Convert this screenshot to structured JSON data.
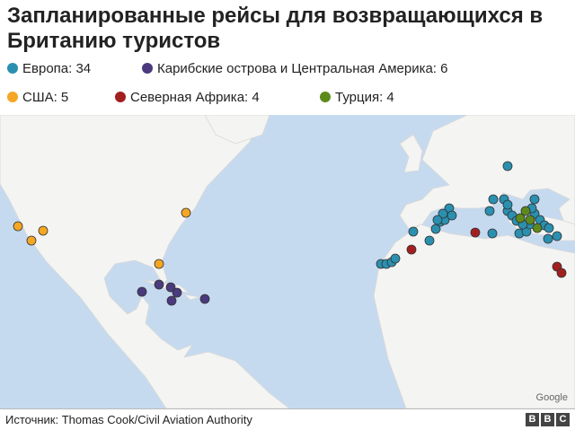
{
  "title": "Запланированные рейсы для возвращающихся в Британию туристов",
  "legend": [
    "Европа: 34",
    "Карибские острова и Центральная Америка: 6",
    "США: 5",
    "Северная Африка: 4",
    "Турция: 4"
  ],
  "map_credit": "Google",
  "source": "Источник: Thomas Cook/Civil Aviation Authority",
  "logo": [
    "B",
    "B",
    "C"
  ]
}
